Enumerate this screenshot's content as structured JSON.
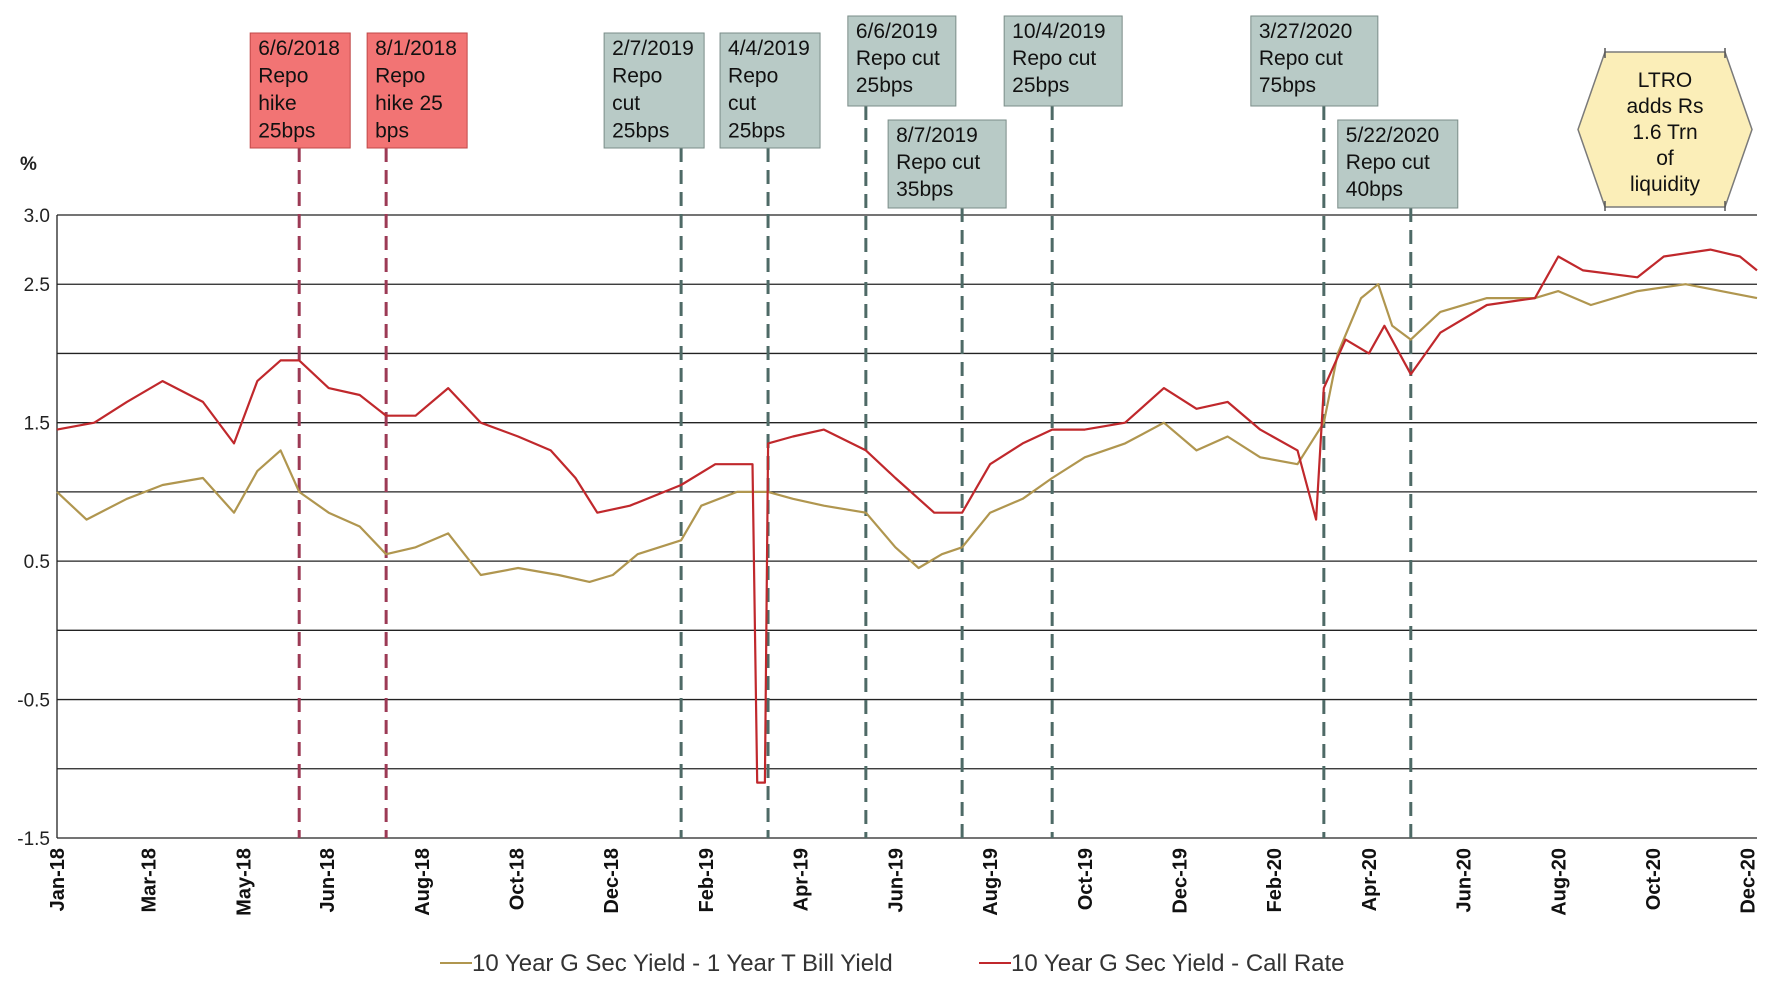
{
  "chart_data": {
    "type": "line",
    "ylabel": "%",
    "ylim": [
      -1.5,
      3.0
    ],
    "yticks": [
      {
        "value": 3.0,
        "label": "3.0"
      },
      {
        "value": 2.5,
        "label": "2.5"
      },
      {
        "value": 2.0,
        "label": ""
      },
      {
        "value": 1.5,
        "label": "1.5"
      },
      {
        "value": 1.0,
        "label": ""
      },
      {
        "value": 0.5,
        "label": "0.5"
      },
      {
        "value": 0.0,
        "label": ""
      },
      {
        "value": -0.5,
        "label": "-0.5"
      },
      {
        "value": -1.0,
        "label": ""
      },
      {
        "value": -1.5,
        "label": "-1.5"
      }
    ],
    "xlim": [
      "2018-01-01",
      "2020-12-31"
    ],
    "xticks": [
      {
        "date": "2018-01-01",
        "label": "Jan-18"
      },
      {
        "date": "2018-03-01",
        "label": "Mar-18"
      },
      {
        "date": "2018-05-01",
        "label": "May-18"
      },
      {
        "date": "2018-06-24",
        "label": "Jun-18"
      },
      {
        "date": "2018-08-24",
        "label": "Aug-18"
      },
      {
        "date": "2018-10-24",
        "label": "Oct-18"
      },
      {
        "date": "2018-12-24",
        "label": "Dec-18"
      },
      {
        "date": "2019-02-23",
        "label": "Feb-19"
      },
      {
        "date": "2019-04-25",
        "label": "Apr-19"
      },
      {
        "date": "2019-06-25",
        "label": "Jun-19"
      },
      {
        "date": "2019-08-25",
        "label": "Aug-19"
      },
      {
        "date": "2019-10-25",
        "label": "Oct-19"
      },
      {
        "date": "2019-12-25",
        "label": "Dec-19"
      },
      {
        "date": "2020-02-24",
        "label": "Feb-20"
      },
      {
        "date": "2020-04-25",
        "label": "Apr-20"
      },
      {
        "date": "2020-06-25",
        "label": "Jun-20"
      },
      {
        "date": "2020-08-25",
        "label": "Aug-20"
      },
      {
        "date": "2020-10-25",
        "label": "Oct-20"
      },
      {
        "date": "2020-12-25",
        "label": "Dec-20"
      }
    ],
    "series": [
      {
        "name": "10 Year G Sec Yield  - 1 Year T Bill Yield",
        "color": "#b0964f",
        "points": [
          [
            "2018-01-01",
            1.0
          ],
          [
            "2018-01-20",
            0.8
          ],
          [
            "2018-02-15",
            0.95
          ],
          [
            "2018-03-10",
            1.05
          ],
          [
            "2018-04-05",
            1.1
          ],
          [
            "2018-04-25",
            0.85
          ],
          [
            "2018-05-10",
            1.15
          ],
          [
            "2018-05-25",
            1.3
          ],
          [
            "2018-06-06",
            1.0
          ],
          [
            "2018-06-25",
            0.85
          ],
          [
            "2018-07-15",
            0.75
          ],
          [
            "2018-08-01",
            0.55
          ],
          [
            "2018-08-20",
            0.6
          ],
          [
            "2018-09-10",
            0.7
          ],
          [
            "2018-10-01",
            0.4
          ],
          [
            "2018-10-25",
            0.45
          ],
          [
            "2018-11-20",
            0.4
          ],
          [
            "2018-12-10",
            0.35
          ],
          [
            "2018-12-25",
            0.4
          ],
          [
            "2019-01-10",
            0.55
          ],
          [
            "2019-02-07",
            0.65
          ],
          [
            "2019-02-20",
            0.9
          ],
          [
            "2019-03-15",
            1.0
          ],
          [
            "2019-04-04",
            1.0
          ],
          [
            "2019-04-20",
            0.95
          ],
          [
            "2019-05-10",
            0.9
          ],
          [
            "2019-06-06",
            0.85
          ],
          [
            "2019-06-25",
            0.6
          ],
          [
            "2019-07-10",
            0.45
          ],
          [
            "2019-07-25",
            0.55
          ],
          [
            "2019-08-07",
            0.6
          ],
          [
            "2019-08-25",
            0.85
          ],
          [
            "2019-09-15",
            0.95
          ],
          [
            "2019-10-04",
            1.1
          ],
          [
            "2019-10-25",
            1.25
          ],
          [
            "2019-11-20",
            1.35
          ],
          [
            "2019-12-15",
            1.5
          ],
          [
            "2020-01-05",
            1.3
          ],
          [
            "2020-01-25",
            1.4
          ],
          [
            "2020-02-15",
            1.25
          ],
          [
            "2020-03-10",
            1.2
          ],
          [
            "2020-03-27",
            1.5
          ],
          [
            "2020-04-05",
            2.0
          ],
          [
            "2020-04-20",
            2.4
          ],
          [
            "2020-05-01",
            2.5
          ],
          [
            "2020-05-10",
            2.2
          ],
          [
            "2020-05-22",
            2.1
          ],
          [
            "2020-06-10",
            2.3
          ],
          [
            "2020-07-10",
            2.4
          ],
          [
            "2020-08-10",
            2.4
          ],
          [
            "2020-08-25",
            2.45
          ],
          [
            "2020-09-15",
            2.35
          ],
          [
            "2020-10-15",
            2.45
          ],
          [
            "2020-11-15",
            2.5
          ],
          [
            "2020-12-31",
            2.4
          ]
        ]
      },
      {
        "name": "10 Year G Sec Yield - Call Rate",
        "color": "#c0282c",
        "points": [
          [
            "2018-01-01",
            1.45
          ],
          [
            "2018-01-25",
            1.5
          ],
          [
            "2018-02-15",
            1.65
          ],
          [
            "2018-03-10",
            1.8
          ],
          [
            "2018-04-05",
            1.65
          ],
          [
            "2018-04-25",
            1.35
          ],
          [
            "2018-05-10",
            1.8
          ],
          [
            "2018-05-25",
            1.95
          ],
          [
            "2018-06-06",
            1.95
          ],
          [
            "2018-06-25",
            1.75
          ],
          [
            "2018-07-15",
            1.7
          ],
          [
            "2018-08-01",
            1.55
          ],
          [
            "2018-08-20",
            1.55
          ],
          [
            "2018-09-10",
            1.75
          ],
          [
            "2018-10-01",
            1.5
          ],
          [
            "2018-10-25",
            1.4
          ],
          [
            "2018-11-15",
            1.3
          ],
          [
            "2018-12-01",
            1.1
          ],
          [
            "2018-12-15",
            0.85
          ],
          [
            "2019-01-05",
            0.9
          ],
          [
            "2019-02-07",
            1.05
          ],
          [
            "2019-03-01",
            1.2
          ],
          [
            "2019-03-25",
            1.2
          ],
          [
            "2019-03-28",
            -1.1
          ],
          [
            "2019-04-02",
            -1.1
          ],
          [
            "2019-04-04",
            1.35
          ],
          [
            "2019-04-20",
            1.4
          ],
          [
            "2019-05-10",
            1.45
          ],
          [
            "2019-06-06",
            1.3
          ],
          [
            "2019-06-25",
            1.1
          ],
          [
            "2019-07-20",
            0.85
          ],
          [
            "2019-08-07",
            0.85
          ],
          [
            "2019-08-25",
            1.2
          ],
          [
            "2019-09-15",
            1.35
          ],
          [
            "2019-10-04",
            1.45
          ],
          [
            "2019-10-25",
            1.45
          ],
          [
            "2019-11-20",
            1.5
          ],
          [
            "2019-12-15",
            1.75
          ],
          [
            "2020-01-05",
            1.6
          ],
          [
            "2020-01-25",
            1.65
          ],
          [
            "2020-02-15",
            1.45
          ],
          [
            "2020-03-10",
            1.3
          ],
          [
            "2020-03-22",
            0.8
          ],
          [
            "2020-03-27",
            1.75
          ],
          [
            "2020-04-10",
            2.1
          ],
          [
            "2020-04-25",
            2.0
          ],
          [
            "2020-05-05",
            2.2
          ],
          [
            "2020-05-22",
            1.85
          ],
          [
            "2020-06-10",
            2.15
          ],
          [
            "2020-07-10",
            2.35
          ],
          [
            "2020-08-10",
            2.4
          ],
          [
            "2020-08-25",
            2.7
          ],
          [
            "2020-09-10",
            2.6
          ],
          [
            "2020-10-15",
            2.55
          ],
          [
            "2020-11-01",
            2.7
          ],
          [
            "2020-12-01",
            2.75
          ],
          [
            "2020-12-20",
            2.7
          ],
          [
            "2020-12-31",
            2.6
          ]
        ]
      }
    ],
    "events": [
      {
        "date": "2018-06-06",
        "lines": [
          "6/6/2018",
          "Repo",
          "hike",
          "25bps"
        ],
        "type": "hike"
      },
      {
        "date": "2018-08-01",
        "lines": [
          "8/1/2018",
          "Repo",
          "hike 25",
          "bps"
        ],
        "type": "hike"
      },
      {
        "date": "2019-02-07",
        "lines": [
          "2/7/2019",
          "Repo",
          "cut",
          "25bps"
        ],
        "type": "cut"
      },
      {
        "date": "2019-04-04",
        "lines": [
          "4/4/2019",
          "Repo",
          "cut",
          "25bps"
        ],
        "type": "cut"
      },
      {
        "date": "2019-06-06",
        "lines": [
          "6/6/2019",
          "Repo cut",
          "25bps"
        ],
        "type": "cut"
      },
      {
        "date": "2019-08-07",
        "lines": [
          "8/7/2019",
          "Repo cut",
          "35bps"
        ],
        "type": "cut"
      },
      {
        "date": "2019-10-04",
        "lines": [
          "10/4/2019",
          "Repo cut",
          "25bps"
        ],
        "type": "cut"
      },
      {
        "date": "2020-03-27",
        "lines": [
          "3/27/2020",
          "Repo cut",
          "75bps"
        ],
        "type": "cut"
      },
      {
        "date": "2020-05-22",
        "lines": [
          "5/22/2020",
          "Repo cut",
          "40bps"
        ],
        "type": "cut"
      }
    ],
    "callout": {
      "lines": [
        "LTRO",
        "adds Rs",
        "1.6 Trn",
        "of",
        "liquidity"
      ]
    },
    "colors": {
      "hike_box": "#f27474",
      "hike_line": "#9c3a55",
      "cut_box": "#b8cac6",
      "cut_line": "#4e6a66",
      "callout_fill": "#fbeeb8",
      "grid": "#222222"
    }
  }
}
